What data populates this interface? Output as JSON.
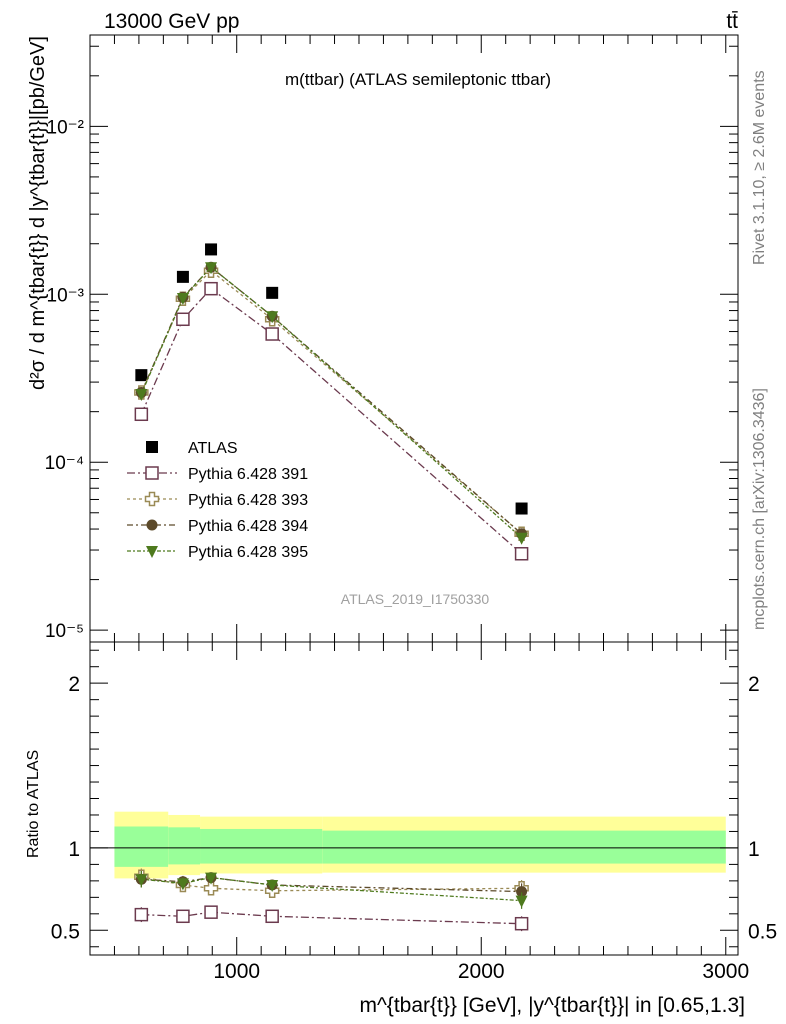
{
  "header": {
    "energy_label": "13000 GeV pp",
    "process_label": "tt̄",
    "side_label_top": "Rivet 3.1.10, ≥ 2.6M events",
    "side_label_bottom": "mcplots.cern.ch [arXiv:1306.3436]"
  },
  "chart_data": [
    {
      "type": "scatter",
      "panel": "main",
      "title": "m(ttbar) (ATLAS semileptonic ttbar)",
      "watermark": "ATLAS_2019_I1750330",
      "ylabel": "d²σ / d m^{tbar{t}} d |y^{tbar{t}}|[pb/GeV]",
      "yscale": "log",
      "ylim": [
        8.5e-06,
        0.035
      ],
      "xlim": [
        400,
        3050
      ],
      "ytick_labels": [
        "10⁻⁵",
        "10⁻⁴",
        "10⁻³",
        "10⁻²"
      ],
      "x": [
        610,
        780,
        895,
        1145,
        2165
      ],
      "series": [
        {
          "name": "ATLAS",
          "marker": "square-filled",
          "color": "#000000",
          "values": [
            0.00033,
            0.00127,
            0.00185,
            0.00102,
            5.3e-05
          ]
        },
        {
          "name": "Pythia 6.428 391",
          "marker": "square-open",
          "color": "#6b3a4e",
          "values": [
            0.000193,
            0.00071,
            0.00108,
            0.00058,
            2.85e-05
          ]
        },
        {
          "name": "Pythia 6.428 393",
          "marker": "cross-open",
          "color": "#9a8a55",
          "values": [
            0.00026,
            0.00094,
            0.00138,
            0.00071,
            3.75e-05
          ]
        },
        {
          "name": "Pythia 6.428 394",
          "marker": "circle-filled",
          "color": "#5c4a2a",
          "values": [
            0.00026,
            0.00096,
            0.00145,
            0.00074,
            3.75e-05
          ]
        },
        {
          "name": "Pythia 6.428 395",
          "marker": "triangle-down-filled",
          "color": "#4e7a1e",
          "values": [
            0.000255,
            0.00095,
            0.00145,
            0.00074,
            3.55e-05
          ]
        }
      ],
      "legend_position": "left-middle"
    },
    {
      "type": "scatter",
      "panel": "ratio",
      "ylabel": "Ratio to ATLAS",
      "xlabel": "m^{tbar{t}} [GeV], |y^{tbar{t}}| in [0.65,1.3]",
      "ylim": [
        0.35,
        2.25
      ],
      "xlim": [
        400,
        3050
      ],
      "x_tick_labels": [
        "1000",
        "2000",
        "3000"
      ],
      "y_tick_labels": [
        "0.5",
        "1",
        "2"
      ],
      "x": [
        610,
        780,
        895,
        1145,
        2165
      ],
      "band_edges": [
        500,
        720,
        850,
        1350,
        3000
      ],
      "band_stat_low": [
        0.885,
        0.9,
        0.905,
        0.905,
        0.87
      ],
      "band_stat_high": [
        1.13,
        1.125,
        1.115,
        1.105,
        1.155
      ],
      "band_total_low": [
        0.815,
        0.835,
        0.845,
        0.85,
        0.71
      ],
      "band_total_high": [
        1.22,
        1.2,
        1.19,
        1.19,
        1.275
      ],
      "series": [
        {
          "name": "Pythia 6.428 391",
          "values": [
            0.595,
            0.585,
            0.61,
            0.585,
            0.54
          ],
          "errors": [
            0.045,
            0.03,
            0.025,
            0.015,
            0.045
          ]
        },
        {
          "name": "Pythia 6.428 393",
          "values": [
            0.825,
            0.775,
            0.755,
            0.74,
            0.755
          ],
          "errors": [
            0.05,
            0.035,
            0.03,
            0.02,
            0.05
          ]
        },
        {
          "name": "Pythia 6.428 394",
          "values": [
            0.81,
            0.795,
            0.82,
            0.775,
            0.735
          ],
          "errors": [
            0.05,
            0.035,
            0.03,
            0.02,
            0.05
          ]
        },
        {
          "name": "Pythia 6.428 395",
          "values": [
            0.81,
            0.785,
            0.82,
            0.775,
            0.68
          ],
          "errors": [
            0.05,
            0.035,
            0.03,
            0.02,
            0.05
          ]
        }
      ],
      "band_colors": {
        "total": "#ffff99",
        "stat": "#99ff99"
      }
    }
  ]
}
